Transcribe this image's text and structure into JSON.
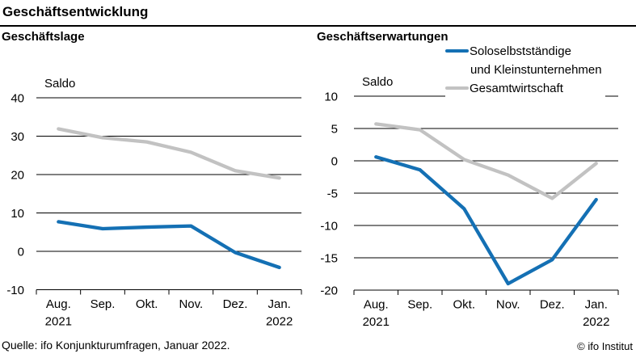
{
  "page": {
    "title": "Geschäftsentwicklung",
    "source": "Quelle: ifo Konjunkturumfragen, Januar 2022.",
    "copyright": "© ifo Institut"
  },
  "colors": {
    "series_blue": "#1470b4",
    "series_gray": "#c2c2c2",
    "text": "#000000",
    "background": "#ffffff"
  },
  "legend": {
    "items": [
      {
        "lines": [
          "Soloselbstständige",
          "und Kleinstunternehmen"
        ],
        "color": "#1470b4"
      },
      {
        "lines": [
          "Gesamtwirtschaft"
        ],
        "color": "#c2c2c2"
      }
    ],
    "position": "top-right-of-second-chart"
  },
  "chart_data": [
    {
      "type": "line",
      "title": "Geschäftslage",
      "ylabel": "Saldo",
      "categories": [
        "Aug.",
        "Sep.",
        "Okt.",
        "Nov.",
        "Dez.",
        "Jan."
      ],
      "year_labels": [
        {
          "index": 0,
          "label": "2021"
        },
        {
          "index": 5,
          "label": "2022"
        }
      ],
      "ylim": [
        -10,
        40
      ],
      "ytick_step": 10,
      "grid": "horizontal",
      "series": [
        {
          "name": "Soloselbstständige und Kleinstunternehmen",
          "color": "#1470b4",
          "values": [
            7.7,
            5.9,
            6.3,
            6.6,
            -0.3,
            -4.2
          ]
        },
        {
          "name": "Gesamtwirtschaft",
          "color": "#c2c2c2",
          "values": [
            31.9,
            29.6,
            28.5,
            25.8,
            21.0,
            19.1
          ]
        }
      ]
    },
    {
      "type": "line",
      "title": "Geschäftserwartungen",
      "ylabel": "Saldo",
      "categories": [
        "Aug.",
        "Sep.",
        "Okt.",
        "Nov.",
        "Dez.",
        "Jan."
      ],
      "year_labels": [
        {
          "index": 0,
          "label": "2021"
        },
        {
          "index": 5,
          "label": "2022"
        }
      ],
      "ylim": [
        -20,
        10
      ],
      "ytick_step": 5,
      "grid": "horizontal",
      "series": [
        {
          "name": "Soloselbstständige und Kleinstunternehmen",
          "color": "#1470b4",
          "values": [
            0.6,
            -1.4,
            -7.4,
            -19.0,
            -15.3,
            -6.0
          ]
        },
        {
          "name": "Gesamtwirtschaft",
          "color": "#c2c2c2",
          "values": [
            5.7,
            4.8,
            0.2,
            -2.2,
            -5.8,
            -0.4
          ]
        }
      ]
    }
  ]
}
